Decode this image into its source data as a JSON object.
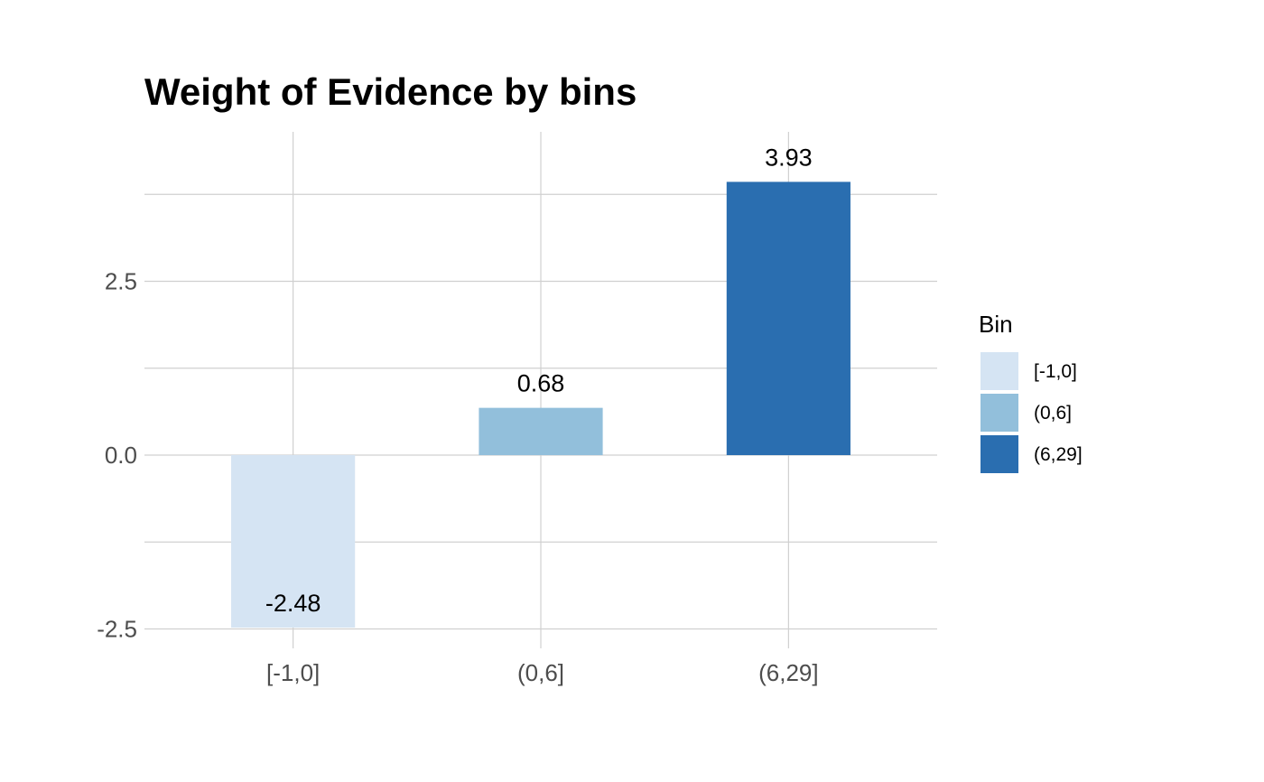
{
  "chart_data": {
    "type": "bar",
    "title": "Weight of Evidence by bins",
    "xlabel": "",
    "ylabel": "",
    "categories": [
      "[-1,0]",
      "(0,6]",
      "(6,29]"
    ],
    "values": [
      -2.48,
      0.68,
      3.93
    ],
    "data_labels": [
      "-2.48",
      "0.68",
      "3.93"
    ],
    "colors": [
      "#d5e4f3",
      "#92bfdb",
      "#2a6eb0"
    ],
    "ylim": [
      -2.6,
      4.75
    ],
    "y_ticks": [
      -2.5,
      0,
      2.5
    ],
    "y_tick_labels": [
      "-2.5",
      "0.0",
      "2.5"
    ],
    "grid": true,
    "legend": {
      "title": "Bin",
      "position": "right",
      "items": [
        "[-1,0]",
        "(0,6]",
        "(6,29]"
      ]
    }
  }
}
